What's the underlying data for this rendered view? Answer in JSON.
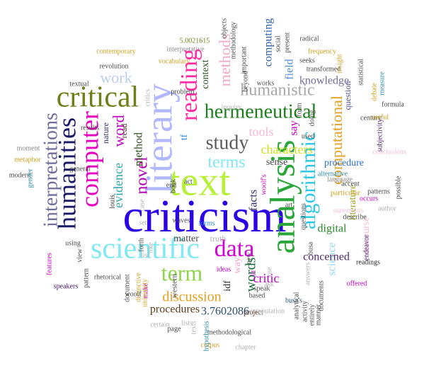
{
  "words": [
    {
      "text": "criticism",
      "color": "#2b00e6",
      "weight": 100
    },
    {
      "text": "text",
      "color": "#b7f03a",
      "weight": 92
    },
    {
      "text": "literary",
      "color": "#b2b8ff",
      "weight": 90
    },
    {
      "text": "analysis",
      "color": "#2aa63a",
      "weight": 84
    },
    {
      "text": "scientific",
      "color": "#7fe8f2",
      "weight": 72
    },
    {
      "text": "critical",
      "color": "#6e7f19",
      "weight": 70
    },
    {
      "text": "computer",
      "color": "#e600c0",
      "weight": 66
    },
    {
      "text": "humanities",
      "color": "#191966",
      "weight": 66
    },
    {
      "text": "reading",
      "color": "#ff2aa4",
      "weight": 62
    },
    {
      "text": "algorithmic",
      "color": "#2bc6e6",
      "weight": 58
    },
    {
      "text": "data",
      "color": "#d400d8",
      "weight": 56
    },
    {
      "text": "hermeneutical",
      "color": "#1a7f1a",
      "weight": 52
    },
    {
      "text": "interpretations",
      "color": "#6e6e9a",
      "weight": 50
    },
    {
      "text": "term",
      "color": "#8fd44a",
      "weight": 48
    },
    {
      "text": "study",
      "color": "#5b5b5b",
      "weight": 44
    },
    {
      "text": "terms",
      "color": "#7fe8f2",
      "weight": 42
    },
    {
      "text": "humanistic",
      "color": "#a8a8a8",
      "weight": 40
    },
    {
      "text": "methods",
      "color": "#f5a6c8",
      "weight": 38
    },
    {
      "text": "work",
      "color": "#b8d0f0",
      "weight": 38
    },
    {
      "text": "word",
      "color": "#c200c2",
      "weight": 36
    },
    {
      "text": "computational",
      "color": "#e6a020",
      "weight": 36
    },
    {
      "text": "novel",
      "color": "#b000b0",
      "weight": 34
    },
    {
      "text": "words",
      "color": "#1a6b3a",
      "weight": 34
    },
    {
      "text": "discussion",
      "color": "#e6a020",
      "weight": 32
    },
    {
      "text": "tools",
      "color": "#f5b8d0",
      "weight": 30
    },
    {
      "text": "characters",
      "color": "#d0e020",
      "weight": 30
    },
    {
      "text": "method",
      "color": "#2a4d1a",
      "weight": 28
    },
    {
      "text": "evidence",
      "color": "#2aa6a6",
      "weight": 28
    },
    {
      "text": "computing",
      "color": "#2a5fa6",
      "weight": 26
    },
    {
      "text": "knowledge",
      "color": "#6e6e9a",
      "weight": 26
    },
    {
      "text": "science",
      "color": "#9ad8f0",
      "weight": 26
    },
    {
      "text": "facts",
      "color": "#2a2a6e",
      "weight": 26
    },
    {
      "text": "critic",
      "color": "#c200c2",
      "weight": 26
    },
    {
      "text": "3.7602086",
      "color": "#2a4d6e",
      "weight": 26
    },
    {
      "text": "digital",
      "color": "#2a8a2a",
      "weight": 24
    },
    {
      "text": "procedures",
      "color": "#5a3a1a",
      "weight": 24
    },
    {
      "text": "field",
      "color": "#4a8ad8",
      "weight": 24
    },
    {
      "text": "say",
      "color": "#c200c2",
      "weight": 24
    },
    {
      "text": "concerned",
      "color": "#4a2a6e",
      "weight": 22
    },
    {
      "text": "context",
      "color": "#2a4d1a",
      "weight": 22
    },
    {
      "text": "procedure",
      "color": "#2a6ed8",
      "weight": 22
    },
    {
      "text": "literature",
      "color": "#a0a020",
      "weight": 22
    },
    {
      "text": "discourse",
      "color": "#f0c0d8",
      "weight": 22
    },
    {
      "text": "sense",
      "color": "#4a4a4a",
      "weight": 20
    },
    {
      "text": "way",
      "color": "#f0a0c8",
      "weight": 20
    },
    {
      "text": "idf",
      "color": "#2a2a2a",
      "weight": 20
    },
    {
      "text": "matter",
      "color": "#4a4a4a",
      "weight": 18
    },
    {
      "text": "truth",
      "color": "#b0b0b0",
      "weight": 18
    },
    {
      "text": "nature",
      "color": "#2a2a6e",
      "weight": 16
    },
    {
      "text": "read",
      "color": "#4a2a1a",
      "weight": 16
    },
    {
      "text": "tf",
      "color": "#2a8ad8",
      "weight": 18
    },
    {
      "text": "inquiry",
      "color": "#b0b0b0",
      "weight": 14
    },
    {
      "text": "question",
      "color": "#4a4a8a",
      "weight": 16
    },
    {
      "text": "form",
      "color": "#4a4a4a",
      "weight": 14
    },
    {
      "text": "alternative",
      "color": "#2a8aa6",
      "weight": 12
    },
    {
      "text": "language",
      "color": "#8a8a8a",
      "weight": 14
    },
    {
      "text": "particular",
      "color": "#d0a020",
      "weight": 14
    },
    {
      "text": "subjectivity",
      "color": "#4a1a6e",
      "weight": 12
    },
    {
      "text": "western",
      "color": "#4a4a4a",
      "weight": 14
    },
    {
      "text": "project",
      "color": "#4a2a1a",
      "weight": 12
    },
    {
      "text": "woolf's",
      "color": "#c200c2",
      "weight": 12
    },
    {
      "text": "art",
      "color": "#4a4a4a",
      "weight": 12
    },
    {
      "text": "busa's",
      "color": "#2a4d6e",
      "weight": 12
    },
    {
      "text": "readings",
      "color": "#2a2a2a",
      "weight": 12
    },
    {
      "text": "offered",
      "color": "#c200c2",
      "weight": 12
    },
    {
      "text": "endeavor",
      "color": "#4a1a6e",
      "weight": 12
    },
    {
      "text": "answers",
      "color": "#b0b0b0",
      "weight": 12
    },
    {
      "text": "methodological",
      "color": "#4a4a4a",
      "weight": 12
    },
    {
      "text": "ideas",
      "color": "#c200c2",
      "weight": 12
    },
    {
      "text": "make",
      "color": "#c200c2",
      "weight": 12
    },
    {
      "text": "corpus",
      "color": "#d0a020",
      "weight": 12
    },
    {
      "text": "chapter",
      "color": "#b0b0b0",
      "weight": 12
    },
    {
      "text": "computation",
      "color": "#b0b0b0",
      "weight": 12
    },
    {
      "text": "documents",
      "color": "#4a4a4a",
      "weight": 12
    },
    {
      "text": "based",
      "color": "#4a4a4a",
      "weight": 12
    },
    {
      "text": "speak",
      "color": "#4a4a4a",
      "weight": 12
    },
    {
      "text": "ask",
      "color": "#b0b0b0",
      "weight": 12
    },
    {
      "text": "questions",
      "color": "#4a4a4a",
      "weight": 12
    },
    {
      "text": "use",
      "color": "#b0b0b0",
      "weight": 12
    },
    {
      "text": "lit",
      "color": "#c200c2",
      "weight": 12
    },
    {
      "text": "like",
      "color": "#b0b0b0",
      "weight": 12
    },
    {
      "text": "forth",
      "color": "#4a4a4a",
      "weight": 12
    },
    {
      "text": "list",
      "color": "#b0b0b0",
      "weight": 12
    },
    {
      "text": "waves",
      "color": "#4a4a4a",
      "weight": 12
    },
    {
      "text": "forms",
      "color": "#2a8ad8",
      "weight": 12
    },
    {
      "text": "book",
      "color": "#4a4a4a",
      "weight": 12
    },
    {
      "text": "act",
      "color": "#4a4a4a",
      "weight": 12
    },
    {
      "text": "louis",
      "color": "#2a2a2a",
      "weight": 12
    },
    {
      "text": "case",
      "color": "#b0b0b0",
      "weight": 12
    },
    {
      "text": "modern",
      "color": "#4a4a4a",
      "weight": 12
    },
    {
      "text": "gender",
      "color": "#2a8aa6",
      "weight": 12
    },
    {
      "text": "metaphor",
      "color": "#d0a020",
      "weight": 12
    },
    {
      "text": "moment",
      "color": "#8a8a8a",
      "weight": 12
    },
    {
      "text": "results",
      "color": "#4a4a4a",
      "weight": 12
    },
    {
      "text": "general",
      "color": "#4a4a4a",
      "weight": 12
    },
    {
      "text": "textual",
      "color": "#4a4a4a",
      "weight": 12
    },
    {
      "text": "revolution",
      "color": "#4a4a4a",
      "weight": 12
    },
    {
      "text": "contemporary",
      "color": "#d0a020",
      "weight": 12
    },
    {
      "text": "5.0021615",
      "color": "#6e7f19",
      "weight": 12
    },
    {
      "text": "interpretative",
      "color": "#8a8a8a",
      "weight": 12
    },
    {
      "text": "vocabulary",
      "color": "#d0a020",
      "weight": 12
    },
    {
      "text": "critics",
      "color": "#b0b0b0",
      "weight": 12
    },
    {
      "text": "problem",
      "color": "#4a4a4a",
      "weight": 12
    },
    {
      "text": "end",
      "color": "#4a4a4a",
      "weight": 12
    },
    {
      "text": "objects",
      "color": "#4a4a4a",
      "weight": 12
    },
    {
      "text": "methodology",
      "color": "#4a4a4a",
      "weight": 12
    },
    {
      "text": "important",
      "color": "#4a4a4a",
      "weight": 12
    },
    {
      "text": "beyond",
      "color": "#4a4a4a",
      "weight": 12
    },
    {
      "text": "works",
      "color": "#4a4a4a",
      "weight": 12
    },
    {
      "text": "social",
      "color": "#4a4a4a",
      "weight": 12
    },
    {
      "text": "present",
      "color": "#4a4a4a",
      "weight": 12
    },
    {
      "text": "radical",
      "color": "#4a4a4a",
      "weight": 12
    },
    {
      "text": "frequency",
      "color": "#d0a020",
      "weight": 12
    },
    {
      "text": "seeks",
      "color": "#4a4a4a",
      "weight": 12
    },
    {
      "text": "transformed",
      "color": "#4a4a4a",
      "weight": 12
    },
    {
      "text": "insight",
      "color": "#d0a020",
      "weight": 12
    },
    {
      "text": "statistical",
      "color": "#4a4a4a",
      "weight": 12
    },
    {
      "text": "measure",
      "color": "#2a8aa6",
      "weight": 12
    },
    {
      "text": "debate",
      "color": "#d0a020",
      "weight": 12
    },
    {
      "text": "formula",
      "color": "#4a4a4a",
      "weight": 12
    },
    {
      "text": "century",
      "color": "#4a4a4a",
      "weight": 12
    },
    {
      "text": "useful",
      "color": "#d0a020",
      "weight": 12
    },
    {
      "text": "conclusions",
      "color": "#f0c0d8",
      "weight": 12
    },
    {
      "text": "possible",
      "color": "#4a4a4a",
      "weight": 12
    },
    {
      "text": "patterns",
      "color": "#4a4a4a",
      "weight": 12
    },
    {
      "text": "statements",
      "color": "#f0c0d8",
      "weight": 12
    },
    {
      "text": "author",
      "color": "#b0b0b0",
      "weight": 12
    },
    {
      "text": "accent",
      "color": "#4a4a4a",
      "weight": 12
    },
    {
      "text": "occurs",
      "color": "#c200c2",
      "weight": 12
    },
    {
      "text": "describe",
      "color": "#4a4a4a",
      "weight": 12
    },
    {
      "text": "speakers",
      "color": "#4a1a6e",
      "weight": 12
    },
    {
      "text": "rhetorical",
      "color": "#4a4a4a",
      "weight": 12
    },
    {
      "text": "document",
      "color": "#4a4a4a",
      "weight": 12
    },
    {
      "text": "distinctive",
      "color": "#d0a020",
      "weight": 12
    },
    {
      "text": "woolf",
      "color": "#4a4a4a",
      "weight": 12
    },
    {
      "text": "university",
      "color": "#d0a020",
      "weight": 12
    },
    {
      "text": "certain",
      "color": "#b0b0b0",
      "weight": 12
    },
    {
      "text": "page",
      "color": "#4a4a4a",
      "weight": 12
    },
    {
      "text": "texts",
      "color": "#b0b0b0",
      "weight": 12
    },
    {
      "text": "hypothesis",
      "color": "#2a8aa6",
      "weight": 12
    },
    {
      "text": "analytical",
      "color": "#4a4a4a",
      "weight": 12
    },
    {
      "text": "activity",
      "color": "#4a4a4a",
      "weight": 12
    },
    {
      "text": "entirely",
      "color": "#4a4a4a",
      "weight": 12
    },
    {
      "text": "manner",
      "color": "#4a4a4a",
      "weight": 12
    },
    {
      "text": "busa",
      "color": "#4a4a4a",
      "weight": 12
    },
    {
      "text": "doing",
      "color": "#4a4a4a",
      "weight": 12
    },
    {
      "text": "used",
      "color": "#4a4a4a",
      "weight": 12
    },
    {
      "text": "features",
      "color": "#c200c2",
      "weight": 12
    },
    {
      "text": "view",
      "color": "#4a4a4a",
      "weight": 12
    },
    {
      "text": "using",
      "color": "#4a4a4a",
      "weight": 12
    },
    {
      "text": "pattern",
      "color": "#4a4a4a",
      "weight": 12
    },
    {
      "text": "set",
      "color": "#b0b0b0",
      "weight": 12
    },
    {
      "text": "new",
      "color": "#4a4a4a",
      "weight": 12
    },
    {
      "text": "lists",
      "color": "#b0b0b0",
      "weight": 12
    }
  ]
}
